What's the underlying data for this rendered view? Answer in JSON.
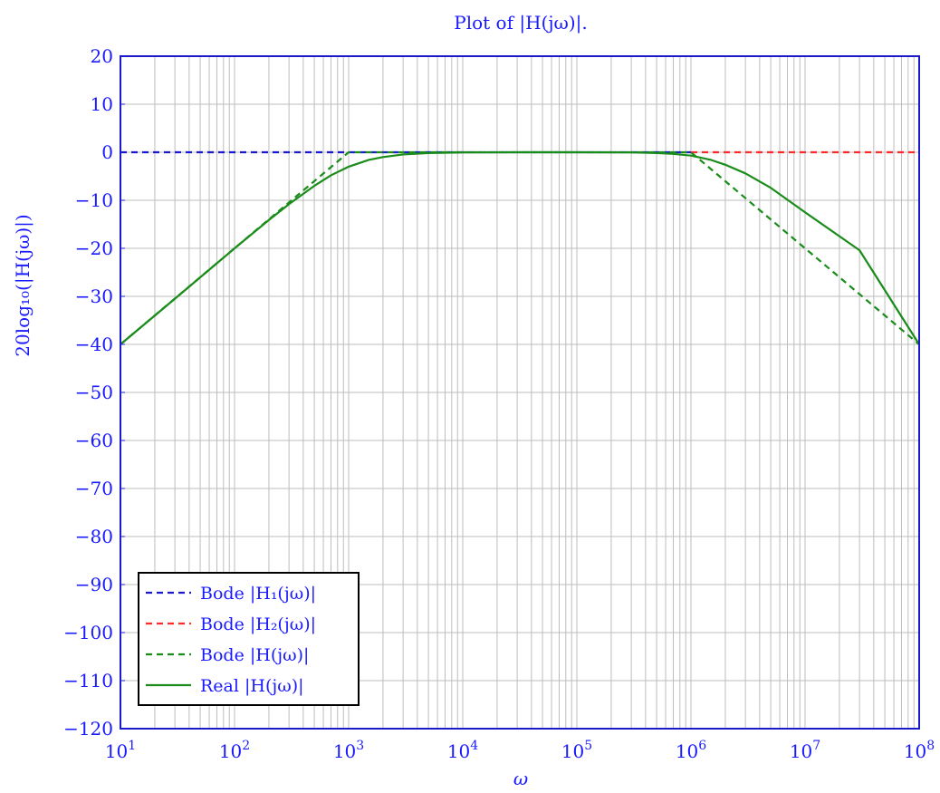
{
  "chart_data": {
    "type": "line",
    "title": "Plot of |H(jω)|.",
    "xlabel": "ω",
    "ylabel": "20log₁₀(|H(jω)|)",
    "xscale": "log",
    "xlim": [
      10,
      100000000
    ],
    "ylim": [
      -120,
      20
    ],
    "grid": true,
    "legend_position": "bottom-left",
    "x_ticks": [
      {
        "value": 10,
        "base": "10",
        "exp": "1"
      },
      {
        "value": 100,
        "base": "10",
        "exp": "2"
      },
      {
        "value": 1000,
        "base": "10",
        "exp": "3"
      },
      {
        "value": 10000,
        "base": "10",
        "exp": "4"
      },
      {
        "value": 100000,
        "base": "10",
        "exp": "5"
      },
      {
        "value": 1000000,
        "base": "10",
        "exp": "6"
      },
      {
        "value": 10000000,
        "base": "10",
        "exp": "7"
      },
      {
        "value": 100000000,
        "base": "10",
        "exp": "8"
      }
    ],
    "y_ticks": [
      20,
      10,
      0,
      -10,
      -20,
      -30,
      -40,
      -50,
      -60,
      -70,
      -80,
      -90,
      -100,
      -110,
      -120
    ],
    "y_tick_labels": [
      "20",
      "10",
      "0",
      "−10",
      "−20",
      "−30",
      "−40",
      "−50",
      "−60",
      "−70",
      "−80",
      "−90",
      "−100",
      "−110",
      "−120"
    ],
    "series": [
      {
        "name": "Bode |H₁(jω)|",
        "color": "#1a1acc",
        "dash": true,
        "x": [
          10,
          100,
          1000,
          10000,
          100000,
          1000000
        ],
        "y": [
          0,
          0,
          0,
          0,
          0,
          0
        ]
      },
      {
        "name": "Bode |H₂(jω)|",
        "color": "#ff2a2a",
        "dash": true,
        "x": [
          1000000,
          10000000,
          100000000
        ],
        "y": [
          0,
          0,
          0
        ]
      },
      {
        "name": "Bode |H(jω)|",
        "color": "#1a8c1a",
        "dash": true,
        "x": [
          10,
          100,
          316,
          1000,
          10000,
          100000,
          1000000,
          3160000,
          10000000,
          100000000
        ],
        "y": [
          -40,
          -20,
          -10,
          0,
          0,
          0,
          0,
          -10,
          -20,
          -40
        ]
      },
      {
        "name": "Real |H(jω)|",
        "color": "#1a8c1a",
        "dash": false,
        "x": [
          10,
          30,
          100,
          200,
          300,
          500,
          700,
          1000,
          1500,
          2000,
          3000,
          5000,
          10000,
          30000,
          100000,
          300000,
          500000,
          700000,
          1000000,
          1500000,
          2000000,
          3000000,
          5000000,
          10000000,
          30000000,
          100000000
        ],
        "y": [
          -40,
          -30.5,
          -20,
          -14.1,
          -10.8,
          -7.0,
          -4.8,
          -3.0,
          -1.6,
          -1.0,
          -0.46,
          -0.17,
          -0.04,
          0,
          0,
          -0.04,
          -0.17,
          -0.34,
          -0.7,
          -1.6,
          -2.6,
          -4.4,
          -7.4,
          -12.5,
          -20.4,
          -40
        ]
      }
    ]
  }
}
